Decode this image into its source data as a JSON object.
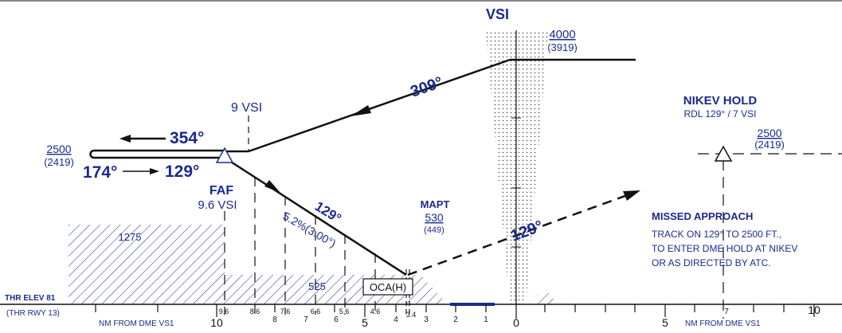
{
  "colors": {
    "ink": "#111111",
    "blue": "#1a2a8c"
  },
  "vsi": {
    "label": "VSI"
  },
  "altitudes": {
    "top_alt": "4000",
    "top_height": "(3919)",
    "left_alt": "2500",
    "left_height": "(2419)",
    "hold_alt": "2500",
    "hold_height": "(2419)",
    "mapt_alt": "530",
    "mapt_height": "(449)"
  },
  "tracks": {
    "inbound_high": "309°",
    "outbound_left": "354°",
    "inbound_left": "174°",
    "outbound_right": "129°",
    "descent": "129°",
    "missed": "129°"
  },
  "fixes": {
    "vsi9": "9 VSI",
    "faf_label": "FAF",
    "faf_dist": "9.6 VSI",
    "mapt_label": "MAPT",
    "oca": "OCA(H)"
  },
  "glidepath": {
    "gradient": "5.2%(3.00°)"
  },
  "obstacles": {
    "high": "1275",
    "low": "525"
  },
  "hold": {
    "title": "NIKEV HOLD",
    "radial": "RDL 129° / 7 VSI"
  },
  "missed_approach": {
    "title": "MISSED APPROACH",
    "line1": "TRACK ON 129° TO 2500 FT.,",
    "line2": "TO ENTER DME HOLD AT NIKEV",
    "line3": "OR AS DIRECTED BY ATC."
  },
  "threshold": {
    "elev": "THR ELEV 81",
    "rwy": "(THR RWY 13)"
  },
  "scale": {
    "left_caption": "NM FROM DME VS1",
    "right_caption": "NM FROM DME VS1",
    "major": [
      "10",
      "8",
      "7",
      "6",
      "5",
      "4",
      "3",
      "2",
      "1",
      "0",
      "5",
      "7",
      "10"
    ],
    "minor": [
      "9.6",
      "8.6",
      "7.6",
      "6.6",
      "5.6",
      "4.6",
      "3.4"
    ]
  }
}
